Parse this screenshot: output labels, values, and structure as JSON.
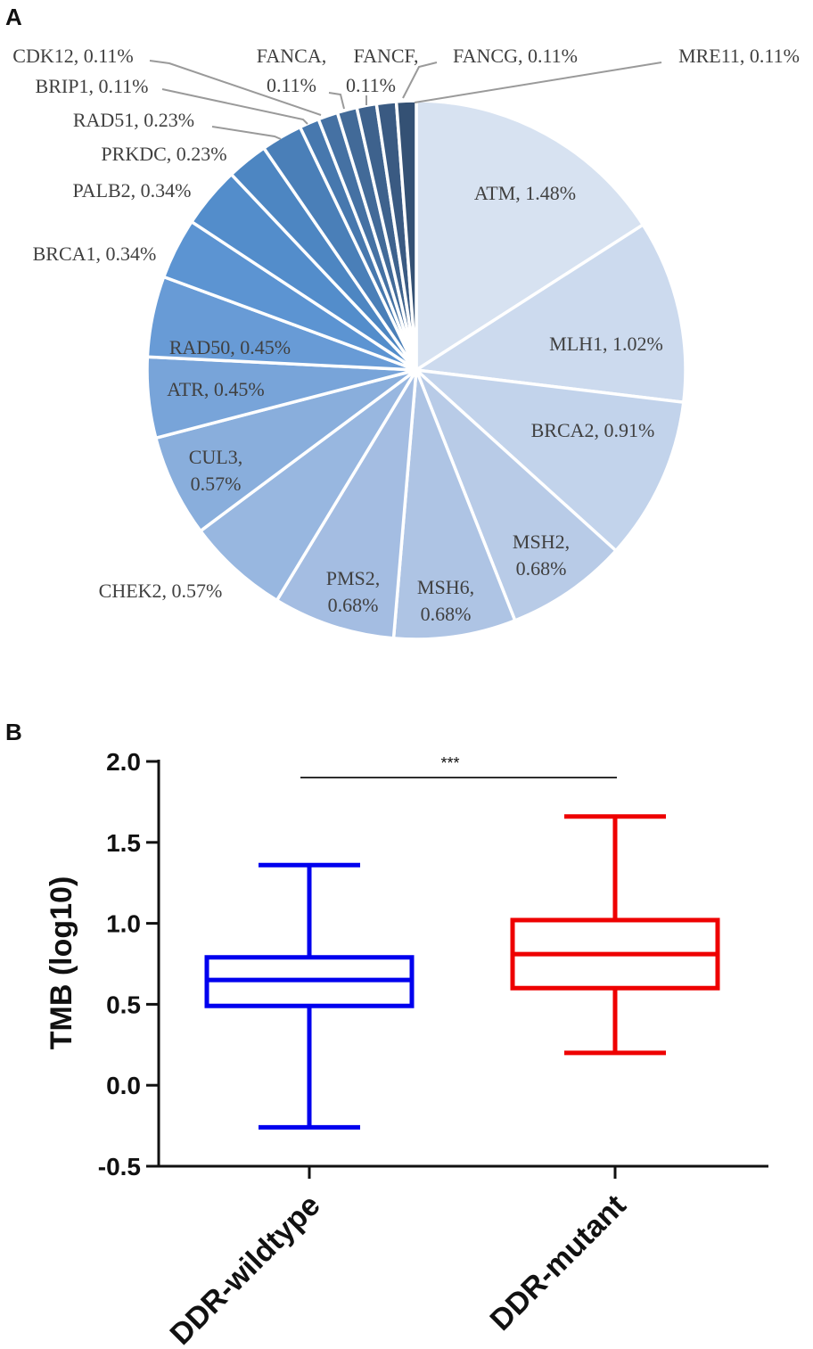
{
  "figure": {
    "panel_a_letter": "A",
    "panel_b_letter": "B"
  },
  "chart_data": [
    {
      "type": "pie",
      "panel": "A",
      "title": "",
      "slices": [
        {
          "label": "ATM, 1.48%",
          "gene": "ATM",
          "value": 1.48,
          "color": "#d7e2f1"
        },
        {
          "label": "MLH1, 1.02%",
          "gene": "MLH1",
          "value": 1.02,
          "color": "#ccdaee"
        },
        {
          "label": "BRCA2, 0.91%",
          "gene": "BRCA2",
          "value": 0.91,
          "color": "#c2d3eb"
        },
        {
          "label": "MSH2, 0.68%",
          "gene": "MSH2",
          "value": 0.68,
          "color": "#b8cbe7"
        },
        {
          "label": "MSH6, 0.68%",
          "gene": "MSH6",
          "value": 0.68,
          "color": "#aec4e4"
        },
        {
          "label": "PMS2, 0.68%",
          "gene": "PMS2",
          "value": 0.68,
          "color": "#a4bde2"
        },
        {
          "label": "CHEK2, 0.57%",
          "gene": "CHEK2",
          "value": 0.57,
          "color": "#98b7e0"
        },
        {
          "label": "CUL3, 0.57%",
          "gene": "CUL3",
          "value": 0.57,
          "color": "#89aedc"
        },
        {
          "label": "ATR, 0.45%",
          "gene": "ATR",
          "value": 0.45,
          "color": "#78a4d9"
        },
        {
          "label": "RAD50, 0.45%",
          "gene": "RAD50",
          "value": 0.45,
          "color": "#689bd6"
        },
        {
          "label": "BRCA1, 0.34%",
          "gene": "BRCA1",
          "value": 0.34,
          "color": "#5c94d2"
        },
        {
          "label": "PALB2, 0.34%",
          "gene": "PALB2",
          "value": 0.34,
          "color": "#538dcb"
        },
        {
          "label": "PRKDC, 0.23%",
          "gene": "PRKDC",
          "value": 0.23,
          "color": "#4d86c2"
        },
        {
          "label": "RAD51, 0.23%",
          "gene": "RAD51",
          "value": 0.23,
          "color": "#4a7fb8"
        },
        {
          "label": "BRIP1, 0.11%",
          "gene": "BRIP1",
          "value": 0.11,
          "color": "#4778ae"
        },
        {
          "label": "CDK12, 0.11%",
          "gene": "CDK12",
          "value": 0.11,
          "color": "#4571a3"
        },
        {
          "label": "FANCA, 0.11%",
          "gene": "FANCA",
          "value": 0.11,
          "color": "#426a98"
        },
        {
          "label": "FANCF, 0.11%",
          "gene": "FANCF",
          "value": 0.11,
          "color": "#3e628d"
        },
        {
          "label": "FANCG, 0.11%",
          "gene": "FANCG",
          "value": 0.11,
          "color": "#3a5a82"
        },
        {
          "label": "MRE11, 0.11%",
          "gene": "MRE11",
          "value": 0.11,
          "color": "#345174"
        }
      ]
    },
    {
      "type": "box",
      "panel": "B",
      "ylabel": "TMB (log10)",
      "xlabel": "",
      "ylim": [
        -0.5,
        2.0
      ],
      "yticks": [
        {
          "value": 2.0,
          "label": "2.0"
        },
        {
          "value": 1.5,
          "label": "1.5"
        },
        {
          "value": 1.0,
          "label": "1.0"
        },
        {
          "value": 0.5,
          "label": "0.5"
        },
        {
          "value": 0.0,
          "label": "0.0"
        },
        {
          "value": -0.5,
          "label": "-0.5"
        }
      ],
      "groups": [
        {
          "name": "DDR-wildtype",
          "color": "#0000ee",
          "whisker_low": -0.26,
          "q1": 0.49,
          "median": 0.65,
          "q3": 0.79,
          "whisker_high": 1.36
        },
        {
          "name": "DDR-mutant",
          "color": "#ee0000",
          "whisker_low": 0.2,
          "q1": 0.6,
          "median": 0.81,
          "q3": 1.02,
          "whisker_high": 1.66
        }
      ],
      "significance": {
        "label": "***",
        "between": [
          "DDR-wildtype",
          "DDR-mutant"
        ],
        "y": 1.9
      }
    }
  ]
}
